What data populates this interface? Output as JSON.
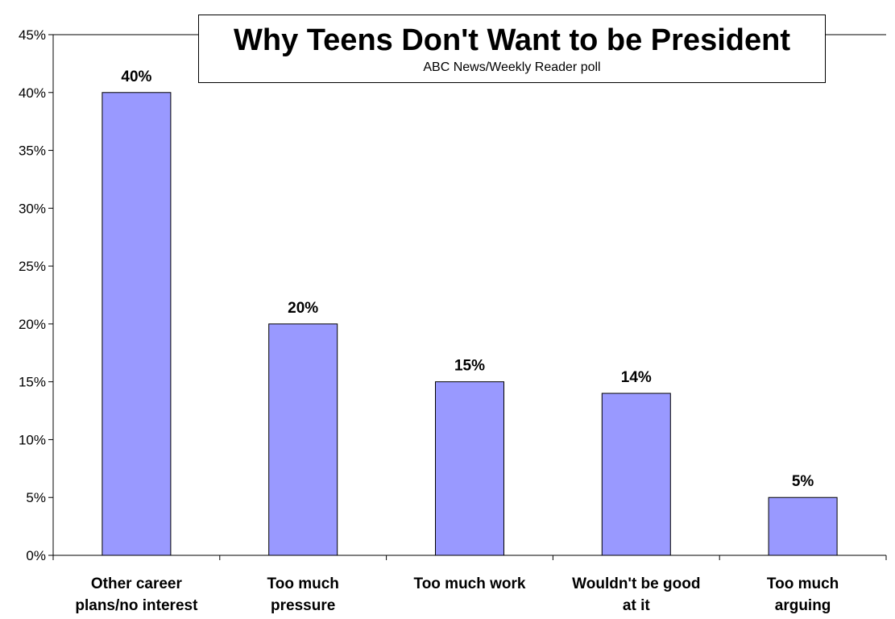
{
  "chart_data": {
    "type": "bar",
    "title": "Why Teens Don't Want to be President",
    "subtitle": "ABC News/Weekly Reader poll",
    "categories": [
      [
        "Other career",
        "plans/no interest"
      ],
      [
        "Too much",
        "pressure"
      ],
      [
        "Too much work"
      ],
      [
        "Wouldn't be good",
        "at it"
      ],
      [
        "Too much",
        "arguing"
      ]
    ],
    "values": [
      40,
      20,
      15,
      14,
      5
    ],
    "data_labels": [
      "40%",
      "20%",
      "15%",
      "14%",
      "5%"
    ],
    "ylim": [
      0,
      45
    ],
    "ytick_values": [
      0,
      5,
      10,
      15,
      20,
      25,
      30,
      35,
      40,
      45
    ],
    "ytick_labels": [
      "0%",
      "5%",
      "10%",
      "15%",
      "20%",
      "25%",
      "30%",
      "35%",
      "40%",
      "45%"
    ],
    "grid": false,
    "legend": "none",
    "colors": {
      "bar_fill": "#9999ff",
      "bar_stroke": "#000000"
    }
  }
}
